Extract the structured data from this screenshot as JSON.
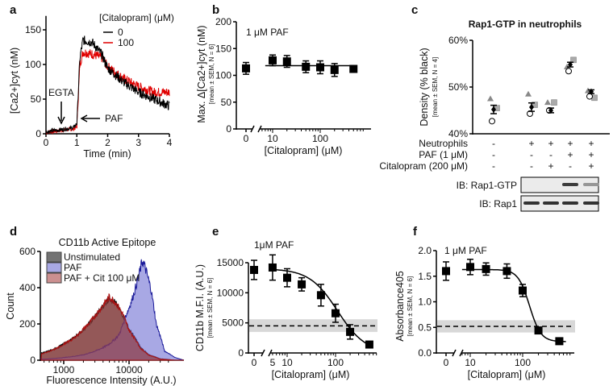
{
  "chart_data": [
    {
      "panel": "a",
      "type": "line",
      "xlabel": "Time (min)",
      "ylabel": "[Ca2+]cyt (nM)",
      "xlim": [
        0,
        4
      ],
      "ylim": [
        0,
        170
      ],
      "xticks": [
        "0",
        "1",
        "2",
        "3",
        "4"
      ],
      "yticks": [
        "0",
        "50",
        "100",
        "150"
      ],
      "legend_title": "[Citalopram] (μM)",
      "legend_placement": "top-right",
      "annotations": [
        "EGTA",
        "PAF"
      ],
      "series": [
        {
          "name": "0",
          "color": "#000000",
          "x": [
            0,
            0.5,
            0.9,
            1.0,
            1.1,
            1.2,
            1.5,
            1.8,
            2.0,
            2.5,
            3.0,
            3.5,
            4.0
          ],
          "y": [
            3,
            6,
            9,
            15,
            110,
            135,
            132,
            115,
            95,
            75,
            60,
            50,
            40
          ]
        },
        {
          "name": "100",
          "color": "#e00000",
          "x": [
            0,
            0.5,
            0.9,
            1.0,
            1.1,
            1.2,
            1.5,
            1.8,
            2.0,
            2.5,
            3.0,
            3.5,
            4.0
          ],
          "y": [
            2,
            5,
            7,
            10,
            100,
            118,
            115,
            110,
            97,
            80,
            68,
            60,
            60
          ]
        }
      ]
    },
    {
      "panel": "b",
      "type": "scatter",
      "xlabel": "[Citalopram] (μM)",
      "ylabel": "Max. Δ[Ca2+]cyt (nM)",
      "ylabel_sub": "[mean ± SEM, N = 6]",
      "annotation": "1 μM PAF",
      "xscale": "log",
      "ylim": [
        0,
        200
      ],
      "xticks": [
        "0",
        "10",
        "100"
      ],
      "yticks": [
        "0",
        "50",
        "100",
        "150",
        "200"
      ],
      "x": [
        0,
        10,
        20,
        50,
        100,
        200,
        500
      ],
      "y": [
        113,
        128,
        126,
        116,
        115,
        110,
        112
      ],
      "err": [
        11,
        10,
        11,
        11,
        12,
        12,
        6
      ],
      "fit": {
        "type": "constant",
        "value": 118
      }
    },
    {
      "panel": "c",
      "type": "scatter",
      "title": "Rap1-GTP in neutrophils",
      "ylabel": "Density (% black)",
      "ylabel_sub": "[mean ± SEM, N = 4]",
      "ylim": [
        40,
        60
      ],
      "yticks": [
        "40%",
        "50%",
        "60%"
      ],
      "conditions": [
        {
          "label": "Neutrophils",
          "values": [
            "-",
            "+",
            "+",
            "+",
            "+"
          ]
        },
        {
          "label": "PAF (1 μM)",
          "values": [
            "-",
            "-",
            "-",
            "+",
            "+"
          ]
        },
        {
          "label": "Citalopram (200 μM)",
          "values": [
            "-",
            "-",
            "+",
            "-",
            "+"
          ]
        }
      ],
      "series": [
        {
          "marker": "triangle",
          "color": "#888888",
          "y": [
            47.5,
            48.5,
            46.7,
            54.3,
            49.2
          ]
        },
        {
          "marker": "square",
          "color": "#aaaaaa",
          "y": [
            45.5,
            46.2,
            46.7,
            55.8,
            47.7
          ]
        },
        {
          "marker": "circle-open",
          "color": "#000000",
          "y": [
            42.7,
            44.3,
            45.0,
            53.4,
            48.0
          ]
        },
        {
          "marker": "mean",
          "color": "#000000",
          "y": [
            45.2,
            45.7,
            45.0,
            54.8,
            49.0
          ],
          "err": [
            0.9,
            0.9,
            0.5,
            0.5,
            0.4
          ]
        }
      ],
      "blots": [
        {
          "label": "IB: Rap1-GTP",
          "band_intensity": [
            0,
            0,
            0.85,
            0.4
          ]
        },
        {
          "label": "IB: Rap1",
          "band_intensity": [
            0.9,
            0.9,
            0.9,
            0.9
          ]
        }
      ]
    },
    {
      "panel": "d",
      "type": "area",
      "title": "CD11b Active Epitope",
      "xlabel": "Fluorescence Intensity (A.U.)",
      "ylabel": "Count",
      "xscale": "log",
      "xlim": [
        450,
        50000
      ],
      "ylim": [
        0,
        600
      ],
      "xticks": [
        "1000",
        "10000"
      ],
      "yticks": [
        "0",
        "200",
        "400",
        "600"
      ],
      "legend_placement": "top-left",
      "series": [
        {
          "name": "Unstimulated",
          "color": "#808080",
          "x": [
            450,
            700,
            1000,
            1500,
            2000,
            3000,
            4000,
            5000,
            6000,
            8000,
            10000,
            15000,
            20000,
            30000,
            50000
          ],
          "y": [
            40,
            60,
            90,
            130,
            170,
            240,
            300,
            345,
            320,
            250,
            170,
            70,
            30,
            8,
            0
          ]
        },
        {
          "name": "PAF",
          "color": "#7777cc",
          "x": [
            450,
            1000,
            2000,
            3000,
            5000,
            7000,
            9000,
            11000,
            13000,
            16000,
            18000,
            22000,
            26000,
            35000,
            50000
          ],
          "y": [
            5,
            15,
            30,
            50,
            90,
            140,
            250,
            330,
            420,
            550,
            500,
            380,
            200,
            50,
            15
          ]
        },
        {
          "name": "PAF + Cit 100 μM",
          "color": "#c07070",
          "x": [
            450,
            700,
            1000,
            1500,
            2000,
            3000,
            4000,
            5000,
            6000,
            8000,
            10000,
            15000,
            20000,
            30000,
            50000
          ],
          "y": [
            35,
            58,
            88,
            128,
            172,
            245,
            305,
            350,
            325,
            255,
            165,
            65,
            28,
            6,
            0
          ]
        }
      ]
    },
    {
      "panel": "e",
      "type": "scatter",
      "xlabel": "[Citalopram] (μM)",
      "ylabel": "CD11b M.F.I. (A.U.)",
      "ylabel_sub": "[mean ± SEM, N = 6]",
      "annotation": "1μM PAF",
      "xscale": "log",
      "ylim": [
        0,
        18000
      ],
      "xticks": [
        "0",
        "5",
        "10",
        "100"
      ],
      "yticks": [
        "0",
        "5000",
        "10000",
        "15000"
      ],
      "x": [
        0,
        5,
        10,
        20,
        50,
        100,
        200,
        500
      ],
      "y": [
        13800,
        14200,
        12500,
        11400,
        9600,
        6600,
        3500,
        1400
      ],
      "err": [
        1600,
        2100,
        1500,
        1100,
        1800,
        1500,
        1200,
        0
      ],
      "reference": {
        "value": 4500,
        "band": [
          3500,
          5600
        ]
      },
      "fit": {
        "type": "sigmoid",
        "top": 14000,
        "bottom": 0,
        "ic50": 110,
        "hill": 1.5
      }
    },
    {
      "panel": "f",
      "type": "scatter",
      "xlabel": "[Citalopram] (μM)",
      "ylabel": "Absorbance405",
      "ylabel_sub": "[mean ± SEM, N = 6]",
      "annotation": "1 μM PAF",
      "xscale": "log",
      "ylim": [
        0,
        2.0
      ],
      "xticks": [
        "0",
        "10",
        "100"
      ],
      "yticks": [
        "0.0",
        "0.5",
        "1.0",
        "1.5",
        "2.0"
      ],
      "x": [
        0,
        10,
        20,
        50,
        100,
        200,
        500
      ],
      "y": [
        1.6,
        1.68,
        1.64,
        1.6,
        1.22,
        0.44,
        0.23
      ],
      "err": [
        0.18,
        0.15,
        0.12,
        0.14,
        0.12,
        0.04,
        0
      ],
      "reference": {
        "value": 0.52,
        "band": [
          0.4,
          0.64
        ]
      },
      "fit": {
        "type": "sigmoid",
        "top": 1.63,
        "bottom": 0.22,
        "ic50": 135,
        "hill": 4
      }
    }
  ]
}
